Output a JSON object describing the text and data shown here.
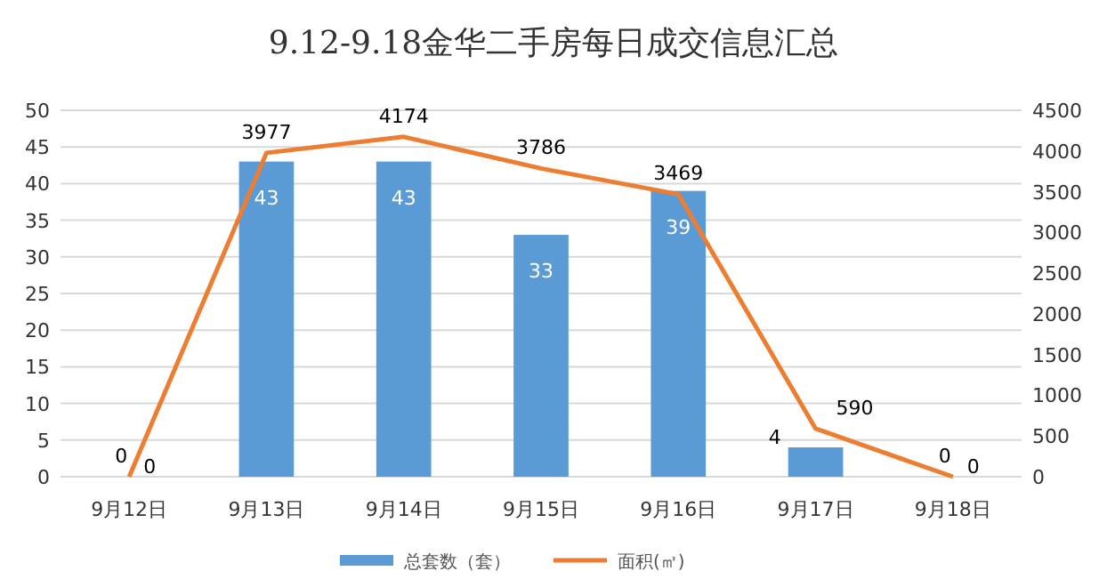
{
  "chart_data": {
    "type": "bar",
    "title": "9.12-9.18金华二手房每日成交信息汇总",
    "categories": [
      "9月12日",
      "9月13日",
      "9月14日",
      "9月15日",
      "9月16日",
      "9月17日",
      "9月18日"
    ],
    "series": [
      {
        "name": "总套数（套）",
        "color": "#5b9bd5",
        "values": [
          0,
          43,
          43,
          33,
          39,
          4,
          0
        ]
      },
      {
        "name": "面积(㎡)",
        "type": "line",
        "axis": "y2",
        "color": "#ed7d31",
        "values": [
          0,
          3977,
          4174,
          3786,
          3469,
          590,
          0
        ]
      }
    ],
    "ylim": [
      0,
      50
    ],
    "yticks": [
      0,
      5,
      10,
      15,
      20,
      25,
      30,
      35,
      40,
      45,
      50
    ],
    "y2lim": [
      0,
      4500
    ],
    "y2ticks": [
      0,
      500,
      1000,
      1500,
      2000,
      2500,
      3000,
      3500,
      4000,
      4500
    ],
    "grid": "y",
    "legend": "bottom",
    "data_labels": true,
    "marker": "none"
  }
}
